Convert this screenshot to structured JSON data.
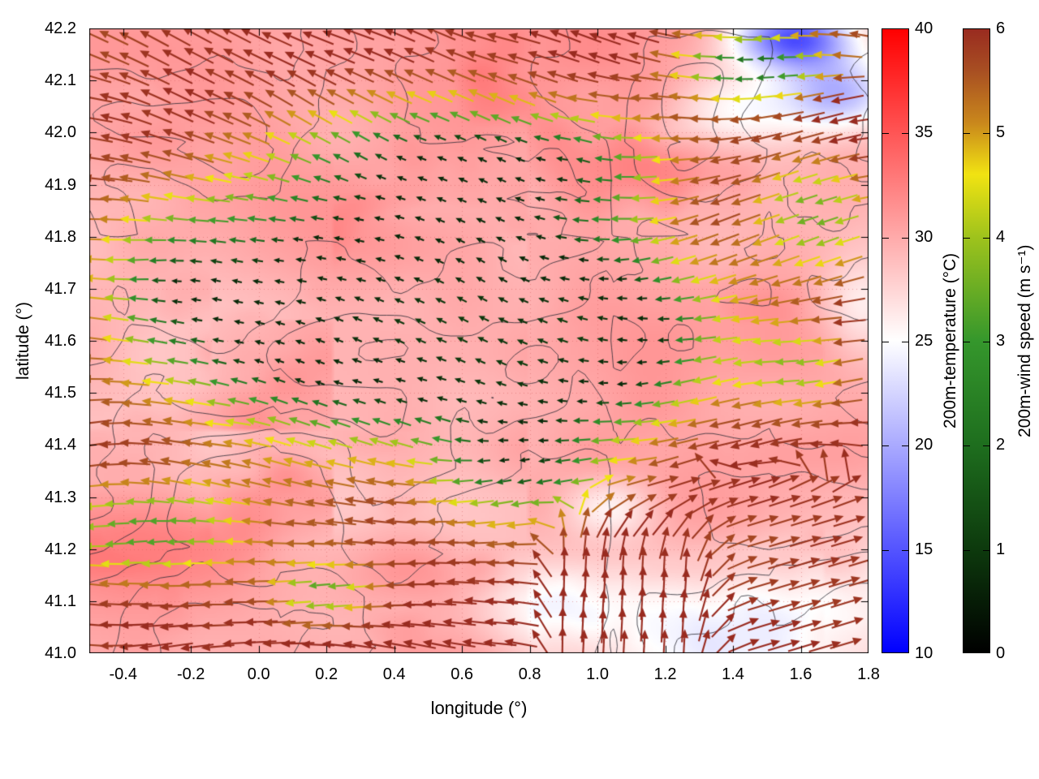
{
  "chart_data": {
    "type": "heatmap",
    "subtype": "geographic map with temperature shading, contour lines and wind vector arrows (quiver)",
    "title": "",
    "grid": true,
    "legend_position": "right-colorbars",
    "x_axis": {
      "label": "longitude (°)",
      "range": [
        -0.5,
        1.8
      ],
      "tick_values": [
        -0.4,
        -0.2,
        0.0,
        0.2,
        0.4,
        0.6,
        0.8,
        1.0,
        1.2,
        1.4,
        1.6,
        1.8
      ],
      "tick_labels": [
        "-0.4",
        "-0.2",
        "0.0",
        "0.2",
        "0.4",
        "0.6",
        "0.8",
        "1.0",
        "1.2",
        "1.4",
        "1.6",
        "1.8"
      ]
    },
    "y_axis": {
      "label": "latitude (°)",
      "range": [
        41.0,
        42.2
      ],
      "tick_values": [
        41.0,
        41.1,
        41.2,
        41.3,
        41.4,
        41.5,
        41.6,
        41.7,
        41.8,
        41.9,
        42.0,
        42.1,
        42.2
      ],
      "tick_labels": [
        "41.0",
        "41.1",
        "41.2",
        "41.3",
        "41.4",
        "41.5",
        "41.6",
        "41.7",
        "41.8",
        "41.9",
        "42.0",
        "42.1",
        "42.2"
      ]
    },
    "colorbars": [
      {
        "id": "temperature",
        "label": "200m-temperature (°C)",
        "range": [
          10,
          40
        ],
        "tick_values": [
          10,
          15,
          20,
          25,
          30,
          35,
          40
        ],
        "tick_labels": [
          "10",
          "15",
          "20",
          "25",
          "30",
          "35",
          "40"
        ],
        "gradient_stops": [
          {
            "value": 10,
            "color": "#0000ff"
          },
          {
            "value": 25,
            "color": "#ffffff"
          },
          {
            "value": 40,
            "color": "#ff0000"
          }
        ]
      },
      {
        "id": "wind_speed",
        "label": "200m-wind speed (m s⁻¹)",
        "range": [
          0,
          6
        ],
        "tick_values": [
          0,
          1,
          2,
          3,
          4,
          5,
          6
        ],
        "tick_labels": [
          "0",
          "1",
          "2",
          "3",
          "4",
          "5",
          "6"
        ],
        "gradient_stops": [
          {
            "value": 0,
            "color": "#000000"
          },
          {
            "value": 1,
            "color": "#0d3a0d"
          },
          {
            "value": 2,
            "color": "#1e6e1e"
          },
          {
            "value": 3,
            "color": "#35972c"
          },
          {
            "value": 4,
            "color": "#9fc31c"
          },
          {
            "value": 4.6,
            "color": "#f1e312"
          },
          {
            "value": 5.1,
            "color": "#c9871c"
          },
          {
            "value": 5.6,
            "color": "#a84f22"
          },
          {
            "value": 6,
            "color": "#992b20"
          }
        ]
      }
    ],
    "layers": [
      {
        "kind": "heatmap",
        "variable": "200m-temperature",
        "units": "°C",
        "colorbar": "temperature"
      },
      {
        "kind": "contour-lines",
        "style": "thin dark irregular curves"
      },
      {
        "kind": "quiver-arrows",
        "variable": "200m-wind",
        "color_by": "200m-wind speed",
        "units": "m s⁻¹",
        "colorbar": "wind_speed"
      }
    ],
    "field_summary": {
      "temperature": "Mostly 28–34 °C (pink to red) over the map; hot streaks ≥35 °C in the lower-left and bottom-center; strong cool blue patch ~15–20 °C at the top-right corner; pale ~24–26 °C zones across the lower-right quadrant.",
      "wind": "Dominant ~5–6 m s⁻¹ flow (dark red arrows) pointing west/northwest over most of the map; slower 1–4 m s⁻¹ winds (dark green to yellow arrows) in a central band near 41.5–41.9° N between 0.0–1.2° E and in scattered clusters; flow turns eastward/northward in the southeast corner.",
      "contours": "Thin dark contour lines meander across the whole map."
    }
  }
}
